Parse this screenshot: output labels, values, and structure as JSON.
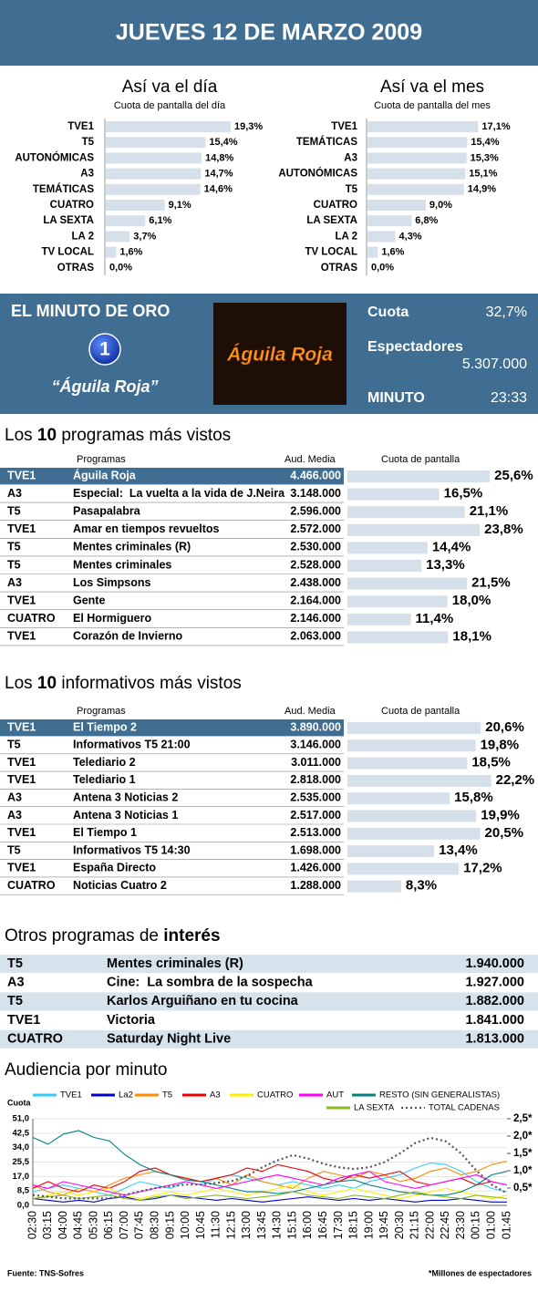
{
  "header": {
    "title": "JUEVES 12 DE MARZO 2009"
  },
  "chart_data": [
    {
      "type": "bar",
      "title": "Así va el día",
      "subtitle": "Cuota de pantalla del día",
      "categories": [
        "TVE1",
        "T5",
        "AUTONÓMICAS",
        "A3",
        "TEMÁTICAS",
        "CUATRO",
        "LA SEXTA",
        "LA 2",
        "TV LOCAL",
        "OTRAS"
      ],
      "values": [
        19.3,
        15.4,
        14.8,
        14.7,
        14.6,
        9.1,
        6.1,
        3.7,
        1.6,
        0.0
      ],
      "value_labels": [
        "19,3%",
        "15,4%",
        "14,8%",
        "14,7%",
        "14,6%",
        "9,1%",
        "6,1%",
        "3,7%",
        "1,6%",
        "0,0%"
      ],
      "color": "#d6e0ea"
    },
    {
      "type": "bar",
      "title": "Así va el mes",
      "subtitle": "Cuota de pantalla del mes",
      "categories": [
        "TVE1",
        "TEMÁTICAS",
        "A3",
        "AUTONÓMICAS",
        "T5",
        "CUATRO",
        "LA SEXTA",
        "LA 2",
        "TV LOCAL",
        "OTRAS"
      ],
      "values": [
        17.1,
        15.4,
        15.3,
        15.1,
        14.9,
        9.0,
        6.8,
        4.3,
        1.6,
        0.0
      ],
      "value_labels": [
        "17,1%",
        "15,4%",
        "15,3%",
        "15,1%",
        "14,9%",
        "9,0%",
        "6,8%",
        "4,3%",
        "1,6%",
        "0,0%"
      ],
      "color": "#d6e0ea"
    },
    {
      "type": "line",
      "title": "Audiencia por minuto",
      "ylabel": "Cuota",
      "grid": true,
      "categories": [
        "02:30",
        "03:15",
        "04:00",
        "04:45",
        "05:30",
        "06:15",
        "07:00",
        "07:45",
        "08:30",
        "09:15",
        "10:00",
        "10:45",
        "11:30",
        "12:15",
        "13:00",
        "13:45",
        "14:30",
        "15:15",
        "16:00",
        "16:45",
        "17:30",
        "18:15",
        "19:00",
        "19:45",
        "20:30",
        "21:15",
        "22:00",
        "22:45",
        "23:30",
        "00:15",
        "01:00",
        "01:45"
      ],
      "ylim": [
        0,
        51
      ],
      "yticks": [
        {
          "value": 0,
          "label": "0,0"
        },
        {
          "value": 8.5,
          "label": "8,5"
        },
        {
          "value": 17,
          "label": "17,0"
        },
        {
          "value": 25.5,
          "label": "25,5"
        },
        {
          "value": 34,
          "label": "34,0"
        },
        {
          "value": 42.5,
          "label": "42,5"
        },
        {
          "value": 51,
          "label": "51,0"
        }
      ],
      "y2lim": [
        0,
        2.5
      ],
      "y2ticks": [
        {
          "value": 0.5,
          "label": "0,5*"
        },
        {
          "value": 1,
          "label": "1,0*"
        },
        {
          "value": 1.5,
          "label": "1,5*"
        },
        {
          "value": 2,
          "label": "2,0*"
        },
        {
          "value": 2.5,
          "label": "2,5*"
        }
      ],
      "series": [
        {
          "name": "TVE1",
          "color": "#33ccff",
          "values": [
            8,
            10,
            12,
            10,
            8,
            6,
            10,
            14,
            12,
            10,
            14,
            12,
            16,
            18,
            16,
            14,
            12,
            14,
            12,
            10,
            12,
            10,
            14,
            16,
            18,
            22,
            25,
            24,
            20,
            14,
            10,
            8
          ]
        },
        {
          "name": "La2",
          "color": "#0000cc",
          "values": [
            4,
            3,
            2,
            3,
            2,
            4,
            5,
            3,
            4,
            6,
            5,
            4,
            3,
            4,
            3,
            2,
            3,
            4,
            5,
            4,
            3,
            4,
            3,
            4,
            3,
            2,
            3,
            3,
            4,
            3,
            2,
            2
          ]
        },
        {
          "name": "T5",
          "color": "#ff8c00",
          "values": [
            12,
            8,
            6,
            10,
            8,
            12,
            16,
            18,
            20,
            18,
            16,
            14,
            16,
            12,
            18,
            14,
            12,
            10,
            16,
            20,
            18,
            16,
            20,
            18,
            14,
            16,
            20,
            22,
            18,
            20,
            24,
            26
          ]
        },
        {
          "name": "A3",
          "color": "#ee0000",
          "values": [
            10,
            14,
            10,
            8,
            12,
            10,
            14,
            20,
            22,
            18,
            16,
            14,
            16,
            18,
            22,
            20,
            24,
            22,
            20,
            16,
            14,
            18,
            16,
            18,
            20,
            14,
            12,
            14,
            16,
            12,
            14,
            12
          ]
        },
        {
          "name": "CUATRO",
          "color": "#ffee00",
          "values": [
            4,
            6,
            8,
            6,
            8,
            10,
            6,
            4,
            6,
            8,
            6,
            8,
            10,
            8,
            6,
            8,
            10,
            12,
            8,
            6,
            8,
            10,
            8,
            6,
            4,
            6,
            8,
            10,
            8,
            6,
            4,
            6
          ]
        },
        {
          "name": "AUT",
          "color": "#ff00ff",
          "values": [
            12,
            10,
            14,
            12,
            10,
            8,
            6,
            8,
            10,
            12,
            14,
            12,
            10,
            12,
            14,
            16,
            18,
            16,
            14,
            12,
            16,
            18,
            20,
            14,
            12,
            10,
            12,
            14,
            16,
            18,
            14,
            12
          ]
        },
        {
          "name": "RESTO (SIN GENERALISTAS)",
          "color": "#008080",
          "values": [
            40,
            36,
            42,
            44,
            40,
            38,
            30,
            24,
            20,
            18,
            15,
            14,
            12,
            10,
            8,
            8,
            7,
            8,
            10,
            12,
            14,
            15,
            12,
            10,
            8,
            7,
            6,
            6,
            8,
            12,
            18,
            20
          ]
        },
        {
          "name": "LA SEXTA",
          "color": "#88bb22",
          "values": [
            4,
            5,
            6,
            4,
            5,
            6,
            4,
            3,
            5,
            6,
            4,
            5,
            6,
            5,
            4,
            5,
            6,
            8,
            6,
            5,
            4,
            6,
            5,
            4,
            6,
            8,
            6,
            5,
            4,
            6,
            5,
            4
          ]
        },
        {
          "name": "TOTAL CADENAS",
          "color": "#555555",
          "axis": "y2",
          "values": [
            0.3,
            0.25,
            0.2,
            0.2,
            0.2,
            0.2,
            0.3,
            0.4,
            0.5,
            0.55,
            0.6,
            0.6,
            0.65,
            0.7,
            0.85,
            1.1,
            1.3,
            1.45,
            1.35,
            1.2,
            1.1,
            1.05,
            1.1,
            1.25,
            1.5,
            1.8,
            1.95,
            1.85,
            1.5,
            1.0,
            0.6,
            0.35
          ]
        }
      ]
    }
  ],
  "minuto_oro": {
    "title": "EL MINUTO DE ORO",
    "logo": "1",
    "program": "“Águila Roja”",
    "image_text": "Águila Roja",
    "cuota_label": "Cuota",
    "cuota": "32,7%",
    "espectadores_label": "Espectadores",
    "espectadores": "5.307.000",
    "minuto_label": "MINUTO",
    "minuto": "23:33"
  },
  "top_programs": {
    "title_parts": [
      "Los ",
      "10",
      " programas más vistos"
    ],
    "columns": [
      "Programas",
      "Aud. Media",
      "Cuota de pantalla"
    ],
    "rows": [
      {
        "channel": "TVE1",
        "program": "Águila Roja",
        "audience": "4.466.000",
        "cuota": 25.6,
        "cuota_label": "25,6%"
      },
      {
        "channel": "A3",
        "program": "Especial:  La vuelta a la vida de J.Neira",
        "audience": "3.148.000",
        "cuota": 16.5,
        "cuota_label": "16,5%"
      },
      {
        "channel": "T5",
        "program": "Pasapalabra",
        "audience": "2.596.000",
        "cuota": 21.1,
        "cuota_label": "21,1%"
      },
      {
        "channel": "TVE1",
        "program": "Amar en tiempos revueltos",
        "audience": "2.572.000",
        "cuota": 23.8,
        "cuota_label": "23,8%"
      },
      {
        "channel": "T5",
        "program": "Mentes criminales (R)",
        "audience": "2.530.000",
        "cuota": 14.4,
        "cuota_label": "14,4%"
      },
      {
        "channel": "T5",
        "program": "Mentes criminales",
        "audience": "2.528.000",
        "cuota": 13.3,
        "cuota_label": "13,3%"
      },
      {
        "channel": "A3",
        "program": "Los Simpsons",
        "audience": "2.438.000",
        "cuota": 21.5,
        "cuota_label": "21,5%"
      },
      {
        "channel": "TVE1",
        "program": "Gente",
        "audience": "2.164.000",
        "cuota": 18.0,
        "cuota_label": "18,0%"
      },
      {
        "channel": "CUATRO",
        "program": "El Hormiguero",
        "audience": "2.146.000",
        "cuota": 11.4,
        "cuota_label": "11,4%"
      },
      {
        "channel": "TVE1",
        "program": "Corazón de Invierno",
        "audience": "2.063.000",
        "cuota": 18.1,
        "cuota_label": "18,1%"
      }
    ]
  },
  "top_news": {
    "title_parts": [
      "Los ",
      "10",
      " informativos más vistos"
    ],
    "columns": [
      "Programas",
      "Aud. Media",
      "Cuota de pantalla"
    ],
    "rows": [
      {
        "channel": "TVE1",
        "program": "El Tiempo 2",
        "audience": "3.890.000",
        "cuota": 20.6,
        "cuota_label": "20,6%"
      },
      {
        "channel": "T5",
        "program": "Informativos T5 21:00",
        "audience": "3.146.000",
        "cuota": 19.8,
        "cuota_label": "19,8%"
      },
      {
        "channel": "TVE1",
        "program": "Telediario 2",
        "audience": "3.011.000",
        "cuota": 18.5,
        "cuota_label": "18,5%"
      },
      {
        "channel": "TVE1",
        "program": "Telediario 1",
        "audience": "2.818.000",
        "cuota": 22.2,
        "cuota_label": "22,2%"
      },
      {
        "channel": "A3",
        "program": "Antena 3 Noticias 2",
        "audience": "2.535.000",
        "cuota": 15.8,
        "cuota_label": "15,8%"
      },
      {
        "channel": "A3",
        "program": "Antena 3 Noticias 1",
        "audience": "2.517.000",
        "cuota": 19.9,
        "cuota_label": "19,9%"
      },
      {
        "channel": "TVE1",
        "program": "El Tiempo 1",
        "audience": "2.513.000",
        "cuota": 20.5,
        "cuota_label": "20,5%"
      },
      {
        "channel": "T5",
        "program": "Informativos T5 14:30",
        "audience": "1.698.000",
        "cuota": 13.4,
        "cuota_label": "13,4%"
      },
      {
        "channel": "TVE1",
        "program": "España Directo",
        "audience": "1.426.000",
        "cuota": 17.2,
        "cuota_label": "17,2%"
      },
      {
        "channel": "CUATRO",
        "program": "Noticias Cuatro 2",
        "audience": "1.288.000",
        "cuota": 8.3,
        "cuota_label": "8,3%"
      }
    ]
  },
  "others": {
    "title_parts": [
      "Otros programas de ",
      "interés"
    ],
    "rows": [
      {
        "channel": "T5",
        "program": "Mentes criminales (R)",
        "audience": "1.940.000"
      },
      {
        "channel": "A3",
        "program": "Cine:  La sombra de la sospecha",
        "audience": "1.927.000"
      },
      {
        "channel": "T5",
        "program": "Karlos Arguiñano en tu cocina",
        "audience": "1.882.000"
      },
      {
        "channel": "TVE1",
        "program": "Victoria",
        "audience": "1.841.000"
      },
      {
        "channel": "CUATRO",
        "program": "Saturday Night Live",
        "audience": "1.813.000"
      }
    ]
  },
  "footer": {
    "source": "Fuente: TNS-Sofres",
    "note": "*Millones de espectadores"
  }
}
